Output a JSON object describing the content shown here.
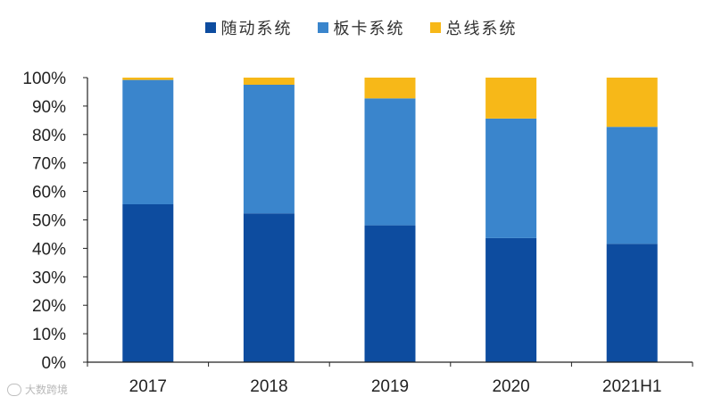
{
  "colors": {
    "series_1": "#0d4c9f",
    "series_2": "#3a85cc",
    "series_3": "#f7b818",
    "axis": "#222222"
  },
  "legend": {
    "items": [
      "随动系统",
      "板卡系统",
      "总线系统"
    ]
  },
  "watermark": {
    "icon": "circle-logo-icon",
    "text": "大数跨境"
  },
  "chart_data": {
    "type": "bar",
    "stacked": true,
    "categories": [
      "2017",
      "2018",
      "2019",
      "2020",
      "2021H1"
    ],
    "series": [
      {
        "name": "随动系统",
        "values": [
          55.5,
          52.3,
          48.1,
          43.6,
          41.6
        ]
      },
      {
        "name": "板卡系统",
        "values": [
          43.7,
          45.2,
          44.6,
          42.0,
          41.1
        ]
      },
      {
        "name": "总线系统",
        "values": [
          0.8,
          2.5,
          7.3,
          14.4,
          17.3
        ]
      }
    ],
    "ylim": [
      0,
      100
    ],
    "yticks": [
      "0%",
      "10%",
      "20%",
      "30%",
      "40%",
      "50%",
      "60%",
      "70%",
      "80%",
      "90%",
      "100%"
    ],
    "grid": false,
    "legend_position": "top-center",
    "title": "",
    "xlabel": "",
    "ylabel": ""
  }
}
